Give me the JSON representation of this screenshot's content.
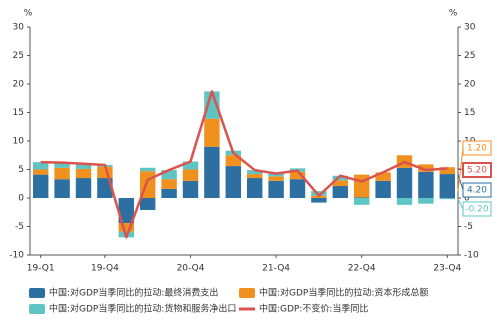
{
  "chart_data": {
    "type": "bar",
    "y_unit": "%",
    "categories": [
      "19-Q1",
      null,
      null,
      "19-Q4",
      null,
      null,
      null,
      "20-Q4",
      null,
      null,
      null,
      "21-Q4",
      null,
      null,
      null,
      "22-Q4",
      null,
      null,
      null,
      "23-Q4"
    ],
    "series": [
      {
        "name": "中国:对GDP当季同比的拉动:最终消费支出",
        "color": "#2c6fa0",
        "kind": "bar",
        "values": [
          4.1,
          3.3,
          3.5,
          3.5,
          -4.4,
          -2.1,
          1.6,
          3.0,
          9.0,
          5.6,
          3.5,
          3.0,
          3.3,
          -0.8,
          2.1,
          0.1,
          3.0,
          5.3,
          4.6,
          4.2
        ],
        "value_labels": [
          null,
          null,
          null,
          null,
          null,
          null,
          null,
          null,
          null,
          null,
          null,
          null,
          null,
          null,
          null,
          null,
          null,
          null,
          null,
          "4.20"
        ]
      },
      {
        "name": "中国:对GDP当季同比的拉动:资本形成总额",
        "color": "#f0901f",
        "kind": "bar",
        "values": [
          0.9,
          2.0,
          1.6,
          2.0,
          -1.5,
          4.7,
          1.7,
          2.0,
          4.9,
          1.9,
          0.7,
          0.8,
          1.3,
          0.4,
          1.0,
          4.0,
          1.5,
          2.2,
          1.3,
          1.2
        ],
        "value_labels": [
          null,
          null,
          null,
          null,
          null,
          null,
          null,
          null,
          null,
          null,
          null,
          null,
          null,
          null,
          null,
          null,
          null,
          null,
          null,
          "1.20"
        ]
      },
      {
        "name": "中国:对GDP当季同比的拉动:货物和服务净出口",
        "color": "#5fc4c4",
        "kind": "bar",
        "values": [
          1.3,
          0.9,
          0.9,
          0.3,
          -1.0,
          0.6,
          1.6,
          1.4,
          4.8,
          0.8,
          0.7,
          0.5,
          0.6,
          0.8,
          0.8,
          -1.2,
          0.0,
          -1.2,
          -1.0,
          -0.2
        ],
        "value_labels": [
          null,
          null,
          null,
          null,
          null,
          null,
          null,
          null,
          null,
          null,
          null,
          null,
          null,
          null,
          null,
          null,
          null,
          null,
          null,
          "-0.20"
        ]
      },
      {
        "name": "中国:GDP:不变价:当季同比",
        "color": "#d9534f",
        "kind": "line",
        "values": [
          6.3,
          6.2,
          6.0,
          5.8,
          -6.9,
          3.2,
          4.9,
          6.4,
          18.7,
          7.9,
          4.9,
          4.3,
          4.8,
          0.4,
          3.9,
          2.9,
          4.5,
          6.3,
          4.9,
          5.2
        ],
        "value_labels": [
          null,
          null,
          null,
          null,
          null,
          null,
          null,
          null,
          null,
          null,
          null,
          null,
          null,
          null,
          null,
          null,
          null,
          null,
          null,
          "5.20"
        ]
      }
    ],
    "ylim": [
      -10,
      30
    ],
    "yticks": [
      -10,
      -5,
      0,
      5,
      10,
      15,
      20,
      25,
      30
    ],
    "y2lim": [
      -10,
      30
    ],
    "y2ticks": [
      -10,
      -5,
      0,
      5,
      10,
      15,
      20,
      25,
      30
    ],
    "grid": false
  }
}
